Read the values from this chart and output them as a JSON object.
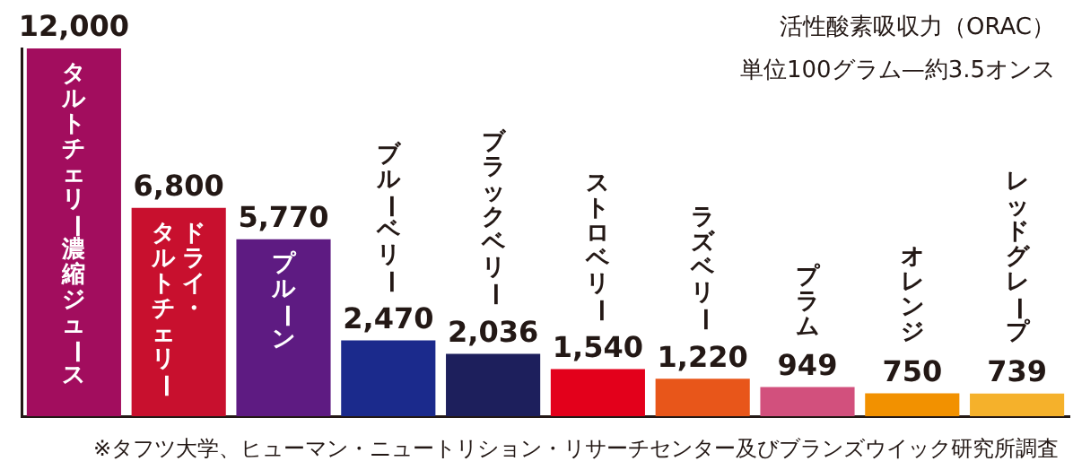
{
  "chart_data": {
    "type": "bar",
    "title": "活性酸素吸収力（ORAC）",
    "subtitle": "単位100グラム—約3.5オンス",
    "categories": [
      "タルトチェリー濃縮ジュース",
      "ドライ・タルトチェリー",
      "プルーン",
      "ブルーベリー",
      "ブラックベリー",
      "ストロベリー",
      "ラズベリー",
      "プラム",
      "オレンジ",
      "レッドグレープ"
    ],
    "values": [
      12000,
      6800,
      5770,
      2470,
      2036,
      1540,
      1220,
      949,
      750,
      739
    ],
    "value_labels": [
      "12,000",
      "6,800",
      "5,770",
      "2,470",
      "2,036",
      "1,540",
      "1,220",
      "949",
      "750",
      "739"
    ],
    "colors": [
      "#a20d5e",
      "#c8102e",
      "#5e1b82",
      "#1b2a8c",
      "#1d1f5c",
      "#e3001b",
      "#e8561a",
      "#d2507d",
      "#f29100",
      "#f5b12b"
    ],
    "annotations": [
      "※タフツ大学、ヒューマン・ニュートリション・リサーチセンター及びブランズウイック研究所調査"
    ]
  }
}
